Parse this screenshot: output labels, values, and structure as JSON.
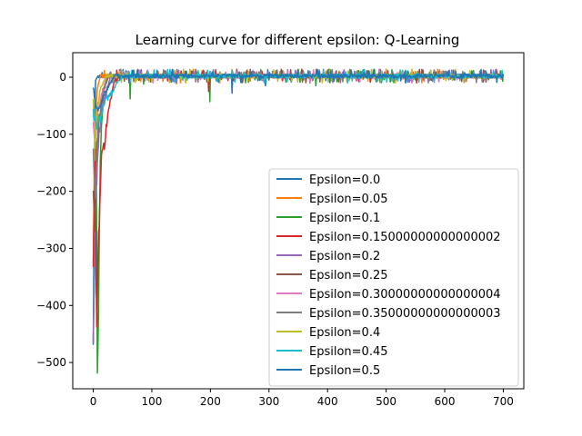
{
  "chart_data": {
    "type": "line",
    "title": "Learning curve for different epsilon: Q-Learning",
    "xlabel": "",
    "ylabel": "",
    "xlim": [
      -35,
      735
    ],
    "ylim": [
      -546,
      43
    ],
    "xticks": [
      0,
      100,
      200,
      300,
      400,
      500,
      600,
      700
    ],
    "yticks": [
      0,
      -100,
      -200,
      -300,
      -400,
      -500
    ],
    "xtick_labels": [
      "0",
      "100",
      "200",
      "300",
      "400",
      "500",
      "600",
      "700"
    ],
    "ytick_labels": [
      "0",
      "−100",
      "−200",
      "−300",
      "−400",
      "−500"
    ],
    "legend_position": "lower-right",
    "grid": false,
    "episodes": 700,
    "series": [
      {
        "name": "Epsilon=0.0",
        "color": "#1f77b4",
        "epsilon": 0.0,
        "keypoints": [
          [
            0,
            -460
          ],
          [
            1,
            -300
          ],
          [
            2,
            -150
          ],
          [
            3,
            -40
          ],
          [
            4,
            -5
          ],
          [
            8,
            2
          ]
        ],
        "dips": [
          [
            237,
            -28
          ],
          [
            294,
            -15
          ]
        ]
      },
      {
        "name": "Epsilon=0.05",
        "color": "#ff7f0e",
        "epsilon": 0.05,
        "keypoints": [
          [
            0,
            -320
          ],
          [
            2,
            -160
          ],
          [
            4,
            -60
          ],
          [
            7,
            -20
          ],
          [
            12,
            2
          ]
        ],
        "dips": [
          [
            142,
            -12
          ],
          [
            330,
            -8
          ]
        ]
      },
      {
        "name": "Epsilon=0.1",
        "color": "#2ca02c",
        "epsilon": 0.1,
        "keypoints": [
          [
            0,
            -460
          ],
          [
            3,
            -300
          ],
          [
            5,
            -100
          ],
          [
            7,
            -520
          ],
          [
            9,
            -400
          ],
          [
            12,
            -140
          ],
          [
            16,
            -60
          ],
          [
            24,
            -20
          ],
          [
            35,
            2
          ]
        ],
        "dips": [
          [
            63,
            -38
          ],
          [
            86,
            -12
          ],
          [
            199,
            -43
          ],
          [
            380,
            -15
          ],
          [
            416,
            -8
          ]
        ]
      },
      {
        "name": "Epsilon=0.15000000000000002",
        "color": "#d62728",
        "epsilon": 0.15000000000000002,
        "keypoints": [
          [
            0,
            -330
          ],
          [
            3,
            -160
          ],
          [
            6,
            -440
          ],
          [
            9,
            -280
          ],
          [
            13,
            -160
          ],
          [
            19,
            -115
          ],
          [
            28,
            -45
          ],
          [
            38,
            2
          ]
        ],
        "dips": [
          [
            197,
            -25
          ],
          [
            240,
            -6
          ]
        ]
      },
      {
        "name": "Epsilon=0.2",
        "color": "#9467bd",
        "epsilon": 0.2,
        "keypoints": [
          [
            0,
            -465
          ],
          [
            3,
            -270
          ],
          [
            6,
            -170
          ],
          [
            10,
            -90
          ],
          [
            18,
            -40
          ],
          [
            30,
            2
          ]
        ],
        "dips": [
          [
            175,
            -8
          ]
        ]
      },
      {
        "name": "Epsilon=0.25",
        "color": "#8c564b",
        "epsilon": 0.25,
        "keypoints": [
          [
            0,
            -200
          ],
          [
            3,
            -270
          ],
          [
            6,
            -120
          ],
          [
            10,
            -80
          ],
          [
            16,
            -30
          ],
          [
            26,
            2
          ]
        ],
        "dips": [
          [
            210,
            -6
          ]
        ]
      },
      {
        "name": "Epsilon=0.30000000000000004",
        "color": "#e377c2",
        "epsilon": 0.30000000000000004,
        "keypoints": [
          [
            0,
            -80
          ],
          [
            4,
            -120
          ],
          [
            8,
            -60
          ],
          [
            14,
            -30
          ],
          [
            24,
            2
          ]
        ],
        "dips": [
          [
            450,
            -6
          ]
        ]
      },
      {
        "name": "Epsilon=0.35000000000000003",
        "color": "#7f7f7f",
        "epsilon": 0.35000000000000003,
        "keypoints": [
          [
            0,
            -130
          ],
          [
            4,
            -200
          ],
          [
            8,
            -90
          ],
          [
            14,
            -40
          ],
          [
            24,
            2
          ]
        ],
        "dips": [
          [
            520,
            -5
          ]
        ]
      },
      {
        "name": "Epsilon=0.4",
        "color": "#bcbd22",
        "epsilon": 0.4,
        "keypoints": [
          [
            0,
            -40
          ],
          [
            3,
            -110
          ],
          [
            7,
            -60
          ],
          [
            12,
            -20
          ],
          [
            22,
            2
          ]
        ],
        "dips": [
          [
            95,
            -8
          ]
        ]
      },
      {
        "name": "Epsilon=0.45",
        "color": "#17becf",
        "epsilon": 0.45,
        "keypoints": [
          [
            0,
            -60
          ],
          [
            5,
            -90
          ],
          [
            12,
            -70
          ],
          [
            20,
            -40
          ],
          [
            30,
            -30
          ],
          [
            40,
            -10
          ],
          [
            52,
            2
          ]
        ],
        "dips": [
          [
            160,
            -5
          ]
        ]
      },
      {
        "name": "Epsilon=0.5",
        "color": "#1f77b4",
        "epsilon": 0.5,
        "keypoints": [
          [
            0,
            -20
          ],
          [
            6,
            -60
          ],
          [
            14,
            -40
          ],
          [
            24,
            -20
          ],
          [
            36,
            2
          ]
        ],
        "dips": [
          [
            300,
            -5
          ]
        ]
      }
    ]
  }
}
